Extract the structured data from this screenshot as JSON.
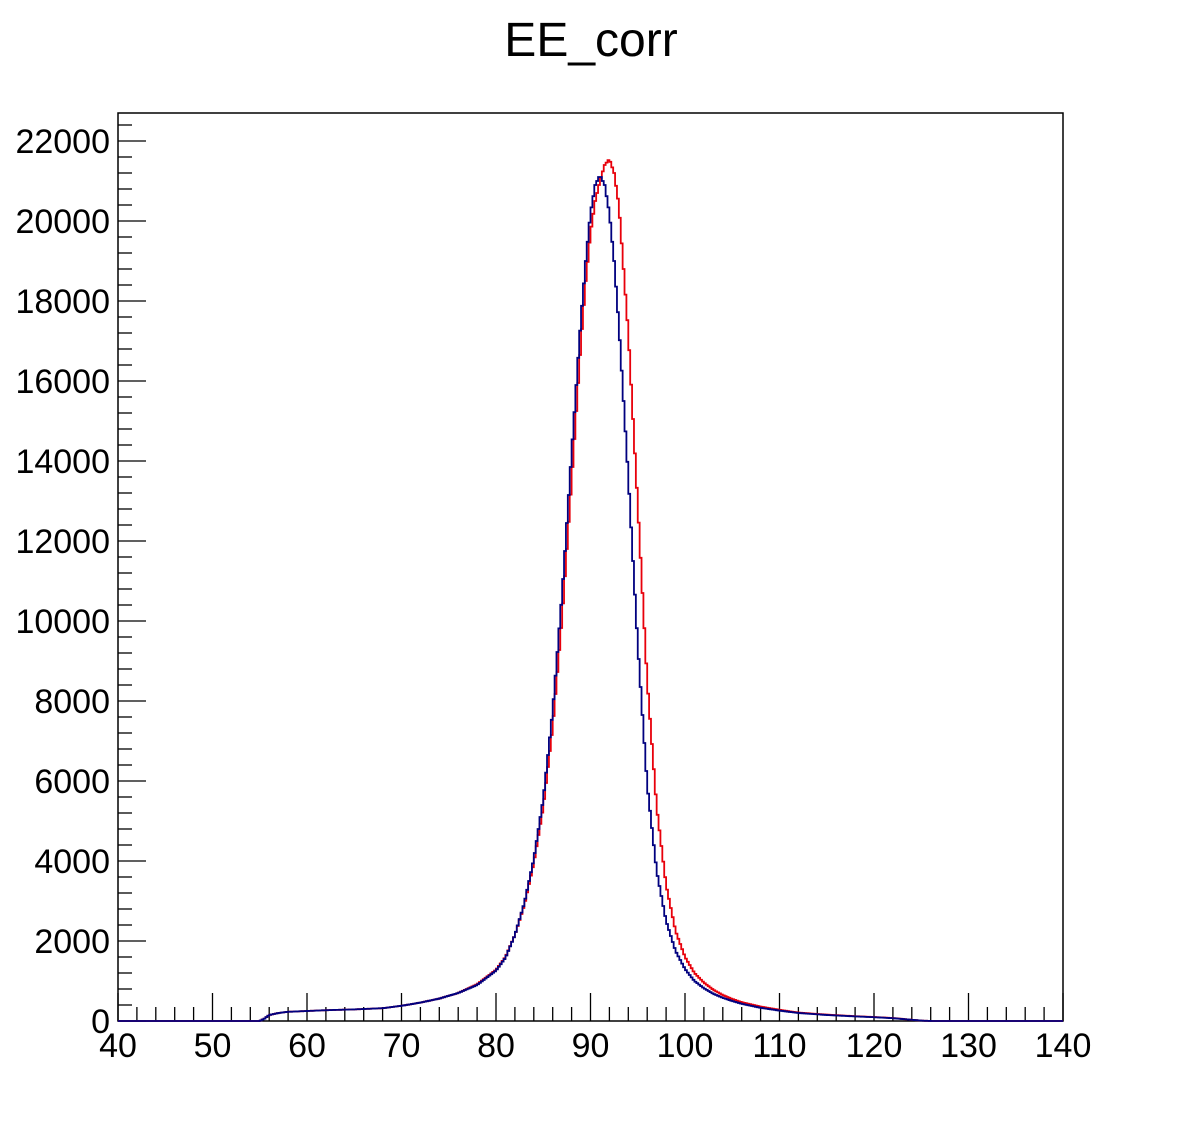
{
  "chart_data": {
    "type": "line",
    "title": "EE_corr",
    "xlabel": "",
    "ylabel": "",
    "xlim": [
      40,
      140
    ],
    "ylim": [
      0,
      22700
    ],
    "grid": false,
    "legend": "none",
    "x_ticks": [
      40,
      50,
      60,
      70,
      80,
      90,
      100,
      110,
      120,
      130,
      140
    ],
    "x_tick_labels": [
      "40",
      "50",
      "60",
      "70",
      "80",
      "90",
      "100",
      "110",
      "120",
      "130",
      "140"
    ],
    "y_ticks": [
      0,
      2000,
      4000,
      6000,
      8000,
      10000,
      12000,
      14000,
      16000,
      18000,
      20000,
      22000
    ],
    "y_tick_labels": [
      "0",
      "2000",
      "4000",
      "6000",
      "8000",
      "10000",
      "12000",
      "14000",
      "16000",
      "18000",
      "20000",
      "22000"
    ],
    "x": [
      40,
      55,
      55.5,
      56,
      57,
      58,
      60,
      62,
      65,
      68,
      70,
      72,
      74,
      76,
      78,
      80,
      81,
      82,
      83,
      84,
      85,
      86,
      87,
      88,
      89,
      89.5,
      90,
      90.5,
      91,
      91.5,
      92,
      92.5,
      93,
      94,
      95,
      96,
      97,
      98,
      99,
      100,
      101,
      102,
      103,
      104,
      105,
      106,
      108,
      110,
      112,
      115,
      118,
      120,
      122,
      124,
      125,
      126,
      130,
      140
    ],
    "series": [
      {
        "color": "#e8000b",
        "values": [
          0,
          0,
          60,
          150,
          200,
          230,
          250,
          270,
          290,
          320,
          380,
          460,
          560,
          700,
          920,
          1280,
          1600,
          2150,
          2900,
          3950,
          5350,
          7350,
          10100,
          13500,
          17000,
          18500,
          19700,
          20500,
          21000,
          21400,
          21550,
          21200,
          20400,
          17200,
          12900,
          8500,
          5350,
          3400,
          2250,
          1600,
          1200,
          960,
          780,
          650,
          550,
          470,
          360,
          280,
          210,
          160,
          120,
          100,
          75,
          30,
          10,
          0,
          0,
          0
        ]
      },
      {
        "color": "#00007f",
        "values": [
          0,
          0,
          60,
          150,
          200,
          230,
          250,
          270,
          290,
          320,
          380,
          460,
          560,
          700,
          900,
          1260,
          1580,
          2150,
          2950,
          4050,
          5550,
          7750,
          10700,
          14200,
          17600,
          19000,
          20200,
          20900,
          21150,
          20900,
          20200,
          19000,
          17400,
          13600,
          9400,
          5900,
          3750,
          2500,
          1750,
          1300,
          1000,
          820,
          680,
          580,
          500,
          430,
          330,
          260,
          200,
          150,
          115,
          95,
          70,
          30,
          10,
          0,
          0,
          0
        ]
      }
    ]
  }
}
